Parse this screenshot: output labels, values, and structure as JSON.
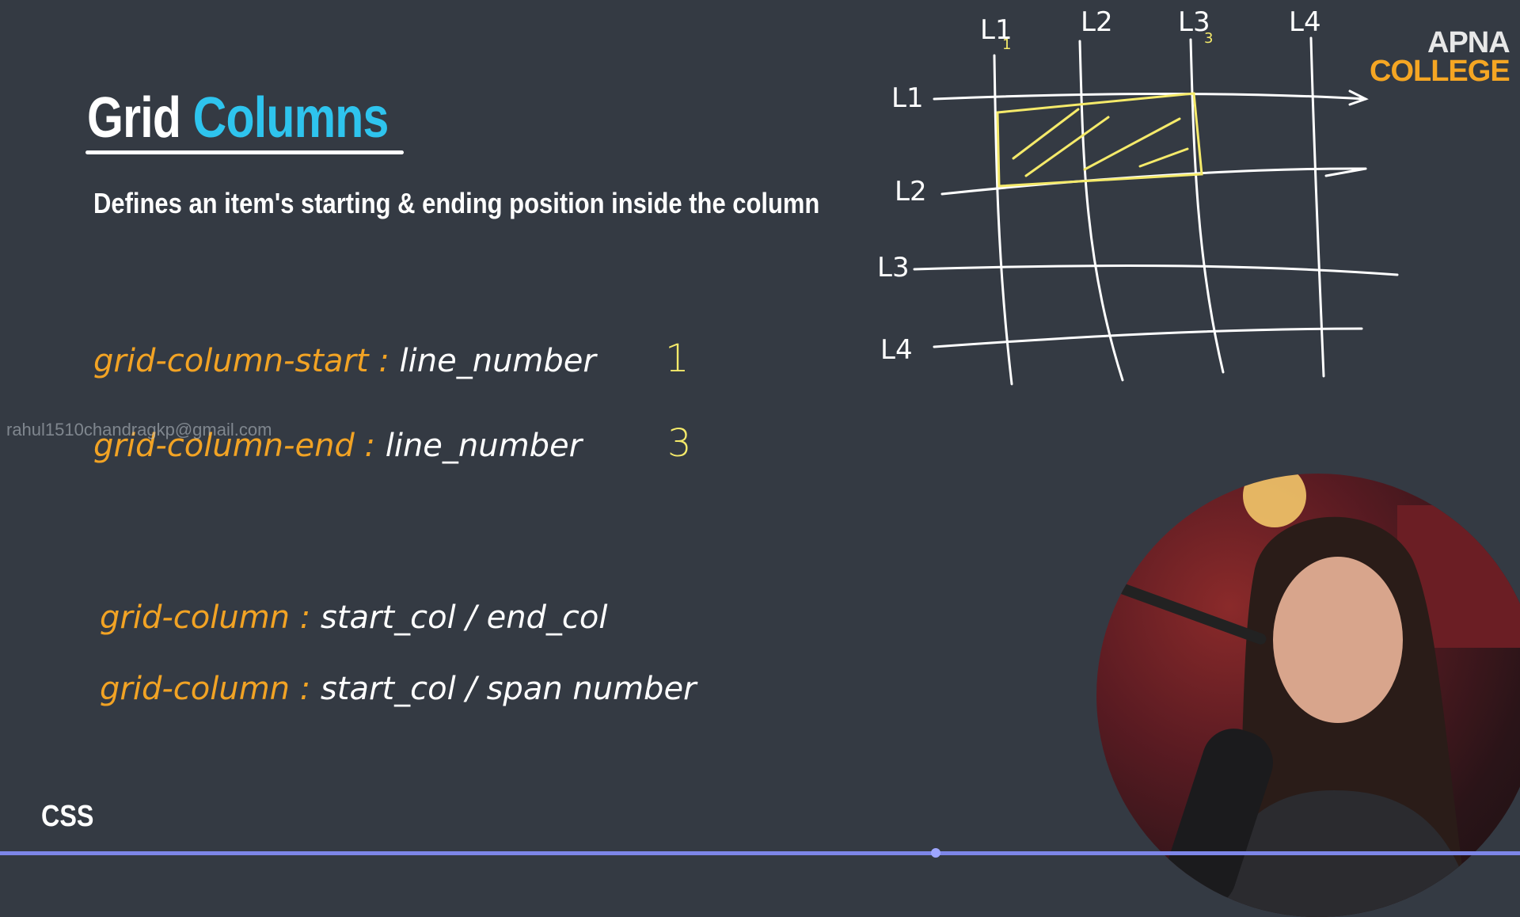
{
  "slide": {
    "title_main": "Grid",
    "title_accent": "Columns",
    "subtitle": "Defines an item's starting & ending position inside the column",
    "lines": [
      {
        "prop": "grid-column-start :",
        "value": " line_number"
      },
      {
        "prop": "grid-column-end :",
        "value": " line_number"
      },
      {
        "prop": "grid-column :",
        "value": " start_col /  end_col"
      },
      {
        "prop": "grid-column :",
        "value": " start_col /  span number"
      }
    ],
    "handwritten_numbers": [
      "1",
      "3"
    ],
    "watermark": "rahul1510chandragkp@gmail.com",
    "section_label": "CSS"
  },
  "logo": {
    "line1": "APNA",
    "line2": "COLLEGE"
  },
  "diagram": {
    "column_labels": [
      "L1",
      "L2",
      "L3",
      "L4"
    ],
    "row_labels": [
      "L1",
      "L2",
      "L3",
      "L4"
    ],
    "small_marks": [
      "1",
      "3"
    ]
  },
  "colors": {
    "background": "#343a43",
    "accent_blue": "#2ec4ee",
    "property_orange": "#f2a324",
    "highlight_yellow": "#f5ea6a",
    "progress": "#7d86e8"
  },
  "video": {
    "progress_fraction": 0.61
  }
}
